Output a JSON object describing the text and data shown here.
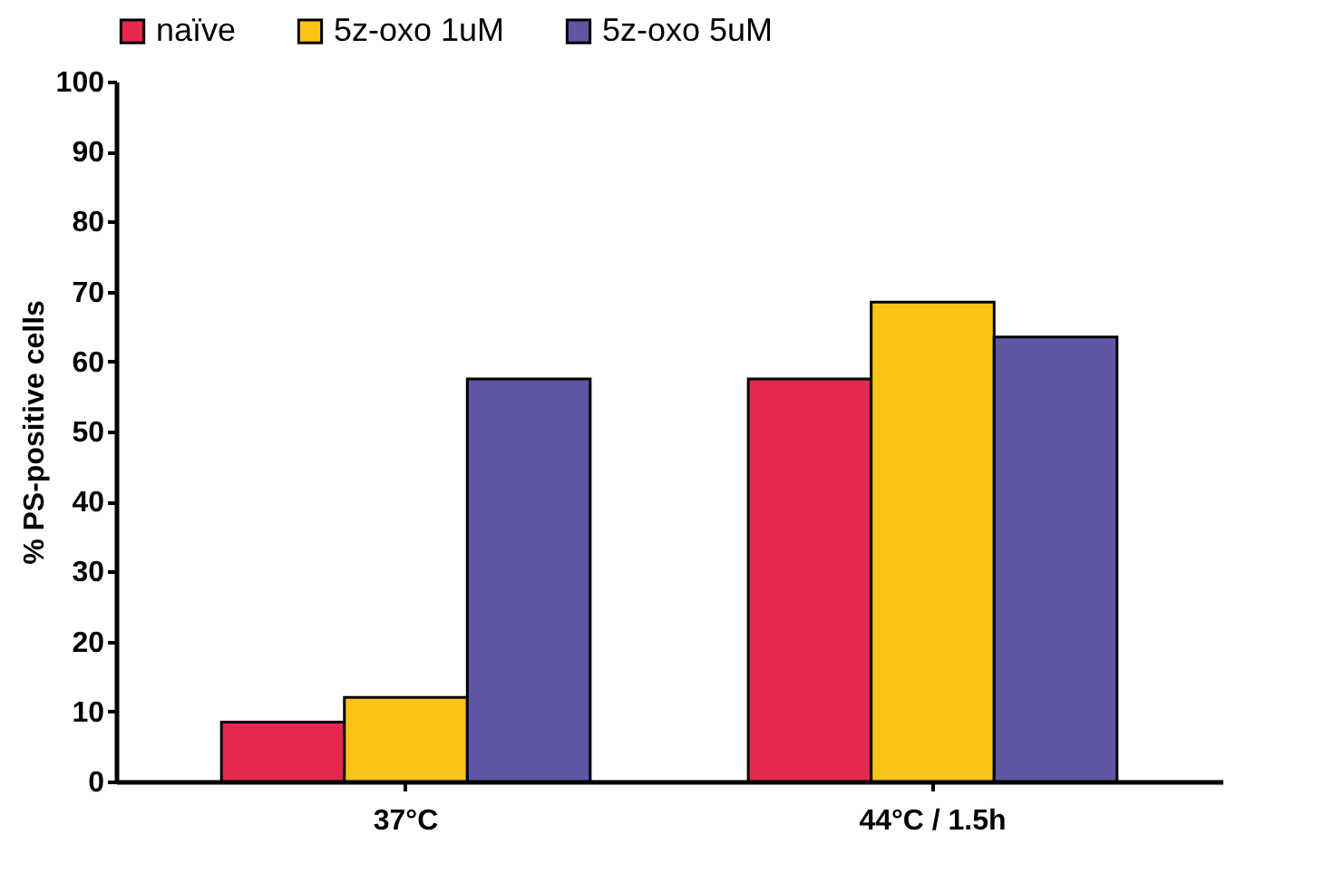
{
  "chart_data": {
    "type": "bar",
    "ylabel": "% PS-positive cells",
    "categories": [
      "37°C",
      "44°C / 1.5h"
    ],
    "series": [
      {
        "name": "naïve",
        "color": "#e4284f",
        "values": [
          8.5,
          57.5
        ]
      },
      {
        "name": "5z-oxo 1uM",
        "color": "#fcc419",
        "values": [
          12,
          68.5
        ]
      },
      {
        "name": "5z-oxo 5uM",
        "color": "#5e56a4",
        "values": [
          57.5,
          63.5
        ]
      }
    ],
    "ylim": [
      0,
      100
    ],
    "yticks": [
      0,
      10,
      20,
      30,
      40,
      50,
      60,
      70,
      80,
      90,
      100
    ],
    "grid": false,
    "legend": "top"
  }
}
